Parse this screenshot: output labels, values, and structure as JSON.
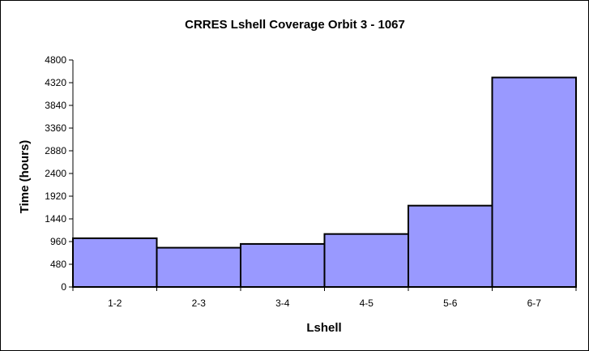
{
  "chart_data": {
    "type": "bar",
    "title": "CRRES Lshell Coverage Orbit 3 - 1067",
    "xlabel": "Lshell",
    "ylabel": "Time (hours)",
    "categories": [
      "1-2",
      "2-3",
      "3-4",
      "4-5",
      "5-6",
      "6-7"
    ],
    "values": [
      1030,
      830,
      910,
      1120,
      1720,
      4430
    ],
    "ylim": [
      0,
      4800
    ],
    "yticks": [
      "0",
      "480",
      "960",
      "1440",
      "1920",
      "2400",
      "2880",
      "3360",
      "3840",
      "4320",
      "4800"
    ],
    "grid": false,
    "legend": "none",
    "colors": {
      "bar_fill": "#9999ff",
      "bar_stroke": "#000000",
      "plot_background": "#ffffff"
    }
  }
}
